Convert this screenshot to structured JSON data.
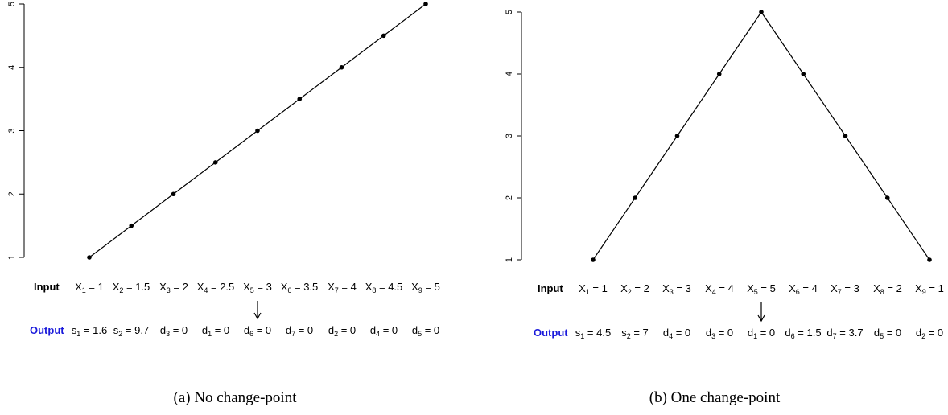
{
  "panels": [
    {
      "caption": "(a) No change-point",
      "input_label": "Input",
      "output_label": "Output"
    },
    {
      "caption": "(b) One change-point",
      "input_label": "Input",
      "output_label": "Output"
    }
  ],
  "chart_data": [
    {
      "type": "line",
      "title": "",
      "x": [
        1,
        2,
        3,
        4,
        5,
        6,
        7,
        8,
        9
      ],
      "y": [
        1,
        1.5,
        2,
        2.5,
        3,
        3.5,
        4,
        4.5,
        5
      ],
      "ylim": [
        1,
        5
      ],
      "yticks": [
        "1",
        "2",
        "3",
        "4",
        "5"
      ],
      "grid": false,
      "inputs": [
        {
          "v": "X",
          "s": "1",
          "val": "= 1"
        },
        {
          "v": "X",
          "s": "2",
          "val": "= 1.5"
        },
        {
          "v": "X",
          "s": "3",
          "val": "= 2"
        },
        {
          "v": "X",
          "s": "4",
          "val": "= 2.5"
        },
        {
          "v": "X",
          "s": "5",
          "val": "= 3"
        },
        {
          "v": "X",
          "s": "6",
          "val": "= 3.5"
        },
        {
          "v": "X",
          "s": "7",
          "val": "= 4"
        },
        {
          "v": "X",
          "s": "8",
          "val": "= 4.5"
        },
        {
          "v": "X",
          "s": "9",
          "val": "= 5"
        }
      ],
      "outputs": [
        {
          "v": "s",
          "s": "1",
          "val": "= 1.6"
        },
        {
          "v": "s",
          "s": "2",
          "val": "= 9.7"
        },
        {
          "v": "d",
          "s": "3",
          "val": "= 0"
        },
        {
          "v": "d",
          "s": "1",
          "val": "= 0"
        },
        {
          "v": "d",
          "s": "6",
          "val": "= 0"
        },
        {
          "v": "d",
          "s": "7",
          "val": "= 0"
        },
        {
          "v": "d",
          "s": "2",
          "val": "= 0"
        },
        {
          "v": "d",
          "s": "4",
          "val": "= 0"
        },
        {
          "v": "d",
          "s": "5",
          "val": "= 0"
        }
      ],
      "arrow_index": 4
    },
    {
      "type": "line",
      "title": "",
      "x": [
        1,
        2,
        3,
        4,
        5,
        6,
        7,
        8,
        9
      ],
      "y": [
        1,
        2,
        3,
        4,
        5,
        4,
        3,
        2,
        1
      ],
      "ylim": [
        1,
        5
      ],
      "yticks": [
        "1",
        "2",
        "3",
        "4",
        "5"
      ],
      "grid": false,
      "inputs": [
        {
          "v": "X",
          "s": "1",
          "val": "= 1"
        },
        {
          "v": "X",
          "s": "2",
          "val": "= 2"
        },
        {
          "v": "X",
          "s": "3",
          "val": "= 3"
        },
        {
          "v": "X",
          "s": "4",
          "val": "= 4"
        },
        {
          "v": "X",
          "s": "5",
          "val": "= 5"
        },
        {
          "v": "X",
          "s": "6",
          "val": "= 4"
        },
        {
          "v": "X",
          "s": "7",
          "val": "= 3"
        },
        {
          "v": "X",
          "s": "8",
          "val": "= 2"
        },
        {
          "v": "X",
          "s": "9",
          "val": "= 1"
        }
      ],
      "outputs": [
        {
          "v": "s",
          "s": "1",
          "val": "= 4.5"
        },
        {
          "v": "s",
          "s": "2",
          "val": "= 7"
        },
        {
          "v": "d",
          "s": "4",
          "val": "= 0"
        },
        {
          "v": "d",
          "s": "3",
          "val": "= 0"
        },
        {
          "v": "d",
          "s": "1",
          "val": "= 0"
        },
        {
          "v": "d",
          "s": "6",
          "val": "= 1.5"
        },
        {
          "v": "d",
          "s": "7",
          "val": "= 3.7"
        },
        {
          "v": "d",
          "s": "5",
          "val": "= 0"
        },
        {
          "v": "d",
          "s": "2",
          "val": "= 0"
        }
      ],
      "arrow_index": 4
    }
  ],
  "colors": {
    "output": "#1a1adb",
    "line": "#000000"
  }
}
